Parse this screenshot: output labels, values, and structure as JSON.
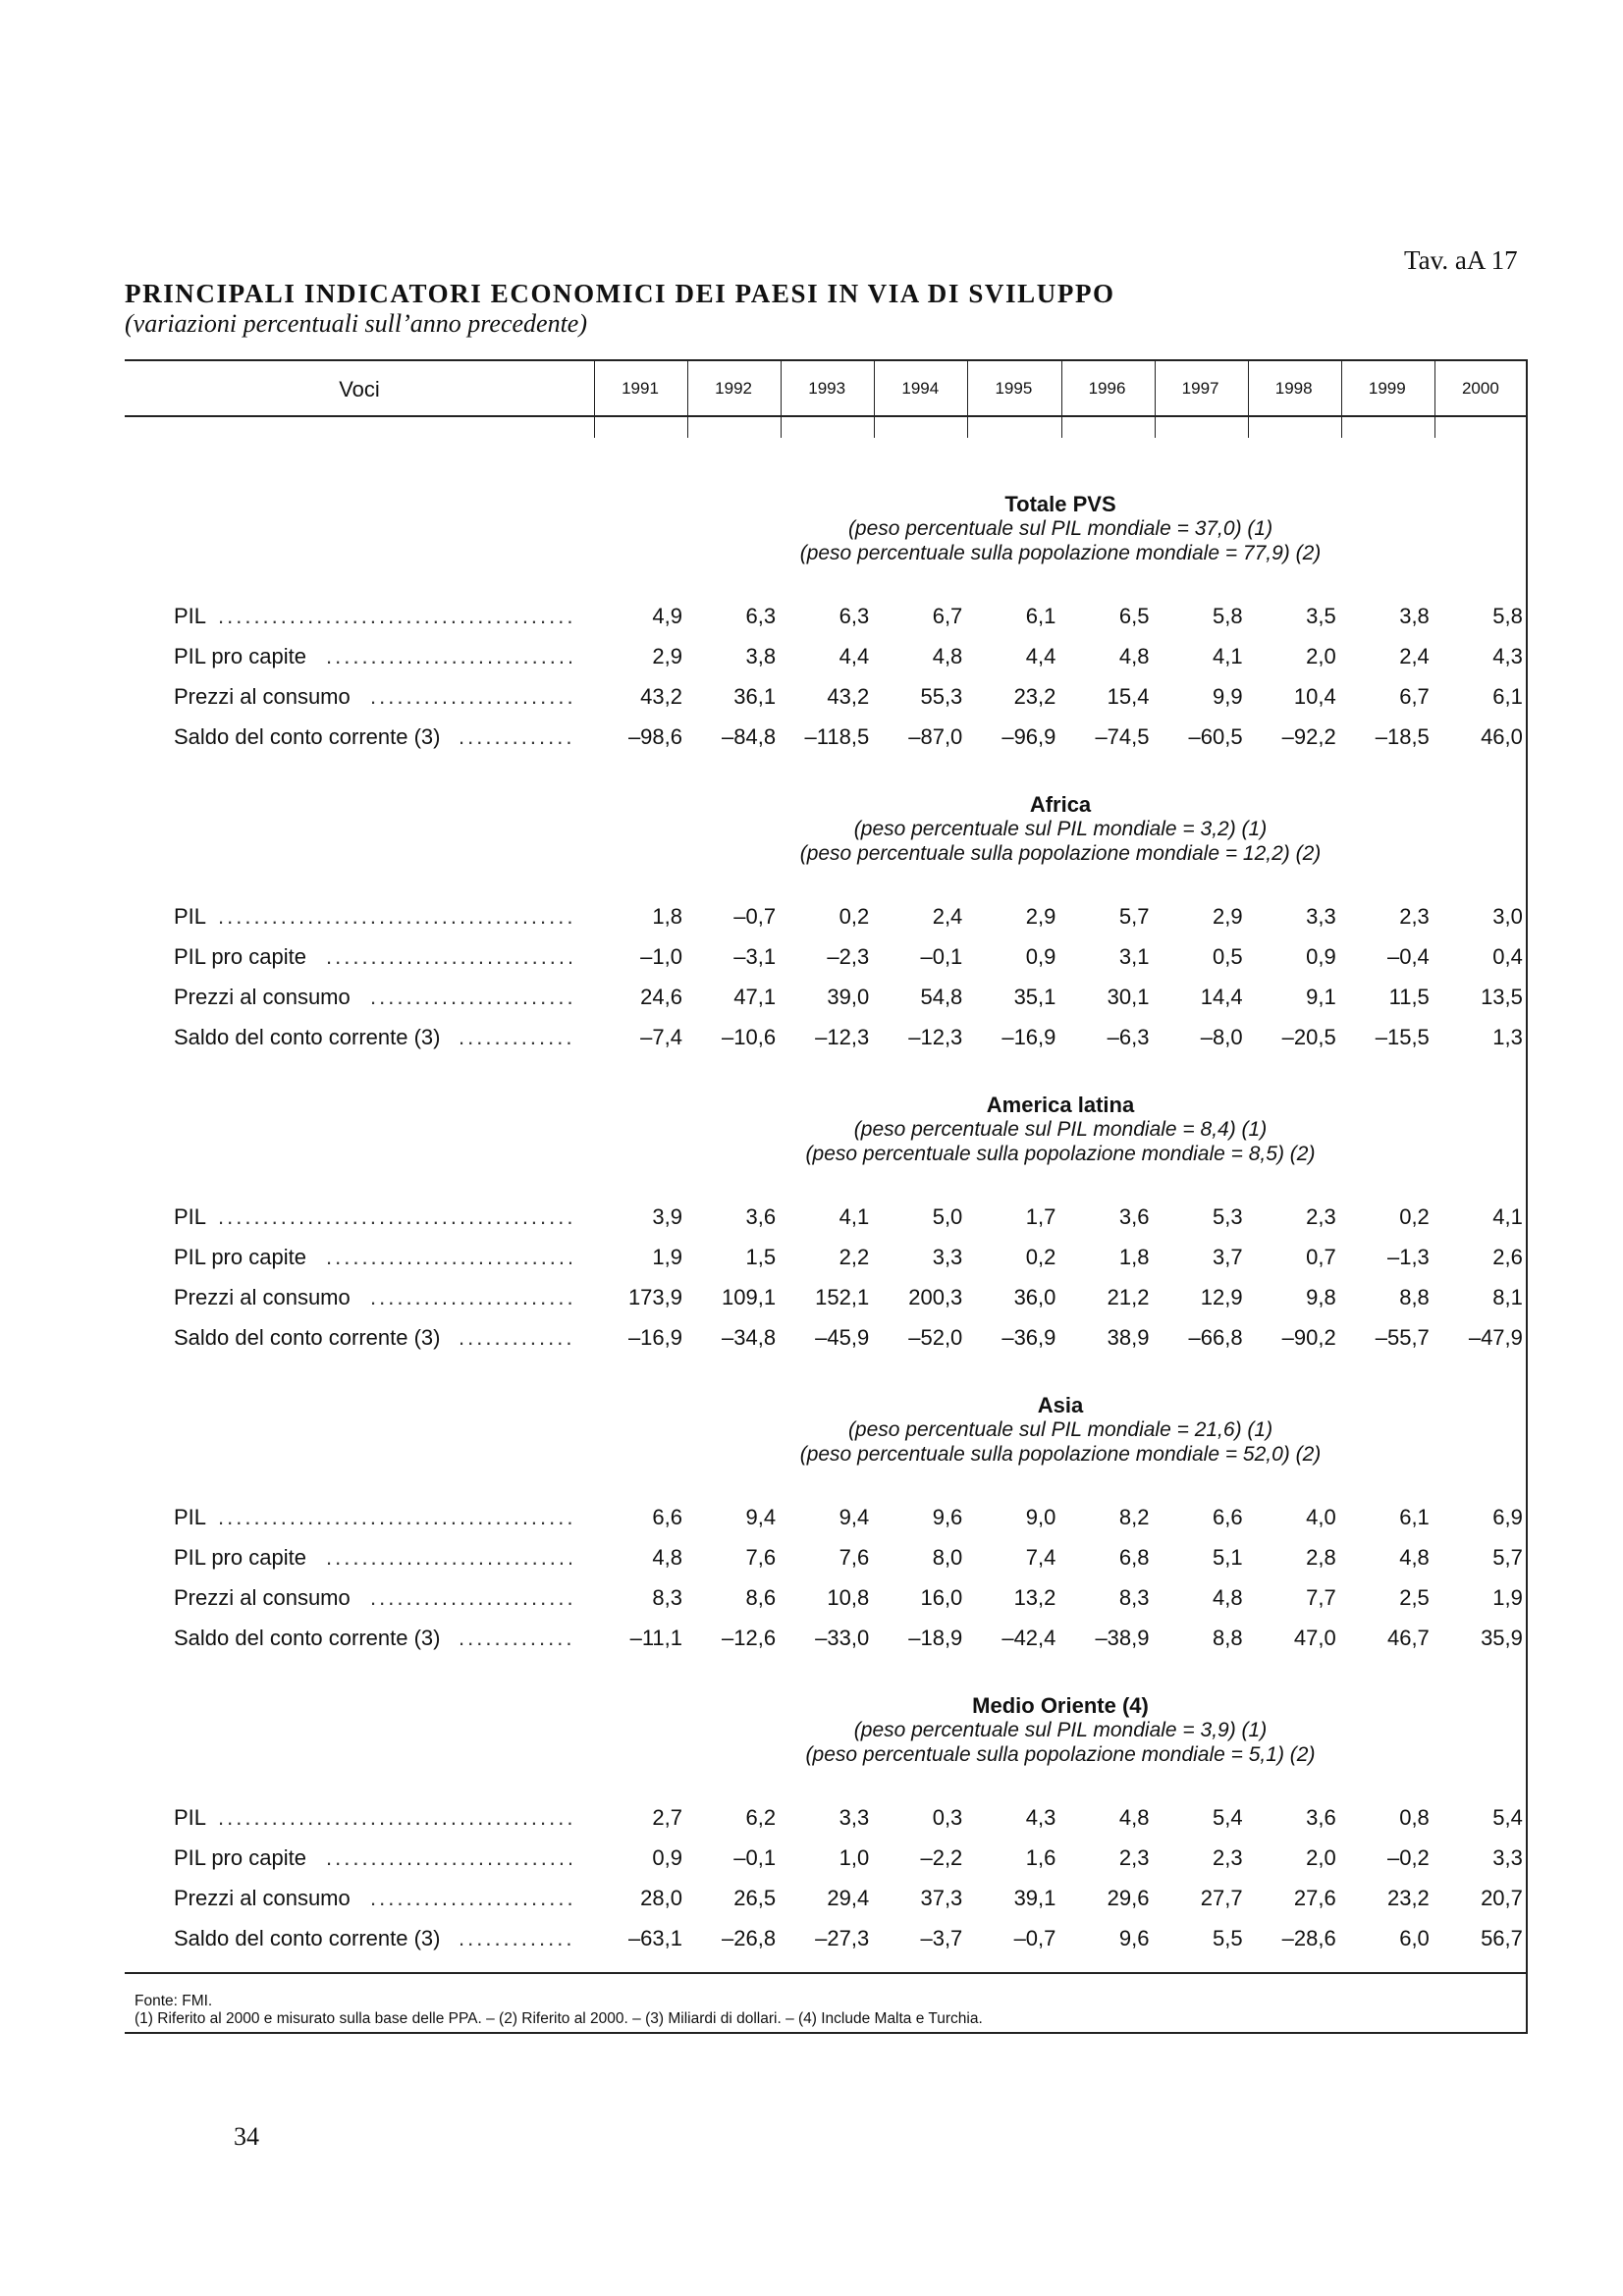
{
  "page": {
    "tav_label": "Tav. aA 17",
    "title": "PRINCIPALI  INDICATORI  ECONOMICI  DEI  PAESI  IN  VIA  DI  SVILUPPO",
    "subtitle": "(variazioni percentuali sull’anno precedente)",
    "page_number": "34"
  },
  "table": {
    "voci_label": "Voci",
    "years": [
      "1991",
      "1992",
      "1993",
      "1994",
      "1995",
      "1996",
      "1997",
      "1998",
      "1999",
      "2000"
    ],
    "sections": [
      {
        "name": "Totale PVS",
        "sub1": "(peso percentuale sul PIL mondiale = 37,0) (1)",
        "sub2": "(peso percentuale sulla popolazione mondiale = 77,9) (2)",
        "rows": [
          {
            "label": "PIL",
            "values": [
              "4,9",
              "6,3",
              "6,3",
              "6,7",
              "6,1",
              "6,5",
              "5,8",
              "3,5",
              "3,8",
              "5,8"
            ]
          },
          {
            "label": "PIL pro capite",
            "values": [
              "2,9",
              "3,8",
              "4,4",
              "4,8",
              "4,4",
              "4,8",
              "4,1",
              "2,0",
              "2,4",
              "4,3"
            ]
          },
          {
            "label": "Prezzi al consumo",
            "values": [
              "43,2",
              "36,1",
              "43,2",
              "55,3",
              "23,2",
              "15,4",
              "9,9",
              "10,4",
              "6,7",
              "6,1"
            ]
          },
          {
            "label": "Saldo del conto corrente (3)",
            "values": [
              "–98,6",
              "–84,8",
              "–118,5",
              "–87,0",
              "–96,9",
              "–74,5",
              "–60,5",
              "–92,2",
              "–18,5",
              "46,0"
            ]
          }
        ]
      },
      {
        "name": "Africa",
        "sub1": "(peso percentuale sul PIL mondiale = 3,2) (1)",
        "sub2": "(peso percentuale sulla popolazione mondiale = 12,2) (2)",
        "rows": [
          {
            "label": "PIL",
            "values": [
              "1,8",
              "–0,7",
              "0,2",
              "2,4",
              "2,9",
              "5,7",
              "2,9",
              "3,3",
              "2,3",
              "3,0"
            ]
          },
          {
            "label": "PIL pro capite",
            "values": [
              "–1,0",
              "–3,1",
              "–2,3",
              "–0,1",
              "0,9",
              "3,1",
              "0,5",
              "0,9",
              "–0,4",
              "0,4"
            ]
          },
          {
            "label": "Prezzi al consumo",
            "values": [
              "24,6",
              "47,1",
              "39,0",
              "54,8",
              "35,1",
              "30,1",
              "14,4",
              "9,1",
              "11,5",
              "13,5"
            ]
          },
          {
            "label": "Saldo del conto corrente (3)",
            "values": [
              "–7,4",
              "–10,6",
              "–12,3",
              "–12,3",
              "–16,9",
              "–6,3",
              "–8,0",
              "–20,5",
              "–15,5",
              "1,3"
            ]
          }
        ]
      },
      {
        "name": "America latina",
        "sub1": "(peso percentuale sul PIL mondiale = 8,4) (1)",
        "sub2": "(peso percentuale sulla popolazione mondiale = 8,5) (2)",
        "rows": [
          {
            "label": "PIL",
            "values": [
              "3,9",
              "3,6",
              "4,1",
              "5,0",
              "1,7",
              "3,6",
              "5,3",
              "2,3",
              "0,2",
              "4,1"
            ]
          },
          {
            "label": "PIL pro capite",
            "values": [
              "1,9",
              "1,5",
              "2,2",
              "3,3",
              "0,2",
              "1,8",
              "3,7",
              "0,7",
              "–1,3",
              "2,6"
            ]
          },
          {
            "label": "Prezzi al consumo",
            "values": [
              "173,9",
              "109,1",
              "152,1",
              "200,3",
              "36,0",
              "21,2",
              "12,9",
              "9,8",
              "8,8",
              "8,1"
            ]
          },
          {
            "label": "Saldo del conto corrente (3)",
            "values": [
              "–16,9",
              "–34,8",
              "–45,9",
              "–52,0",
              "–36,9",
              "38,9",
              "–66,8",
              "–90,2",
              "–55,7",
              "–47,9"
            ]
          }
        ]
      },
      {
        "name": "Asia",
        "sub1": "(peso percentuale sul PIL mondiale = 21,6) (1)",
        "sub2": "(peso percentuale sulla popolazione mondiale = 52,0) (2)",
        "rows": [
          {
            "label": "PIL",
            "values": [
              "6,6",
              "9,4",
              "9,4",
              "9,6",
              "9,0",
              "8,2",
              "6,6",
              "4,0",
              "6,1",
              "6,9"
            ]
          },
          {
            "label": "PIL pro capite",
            "values": [
              "4,8",
              "7,6",
              "7,6",
              "8,0",
              "7,4",
              "6,8",
              "5,1",
              "2,8",
              "4,8",
              "5,7"
            ]
          },
          {
            "label": "Prezzi al consumo",
            "values": [
              "8,3",
              "8,6",
              "10,8",
              "16,0",
              "13,2",
              "8,3",
              "4,8",
              "7,7",
              "2,5",
              "1,9"
            ]
          },
          {
            "label": "Saldo del conto corrente (3)",
            "values": [
              "–11,1",
              "–12,6",
              "–33,0",
              "–18,9",
              "–42,4",
              "–38,9",
              "8,8",
              "47,0",
              "46,7",
              "35,9"
            ]
          }
        ]
      },
      {
        "name": "Medio Oriente (4)",
        "sub1": "(peso percentuale sul PIL mondiale = 3,9) (1)",
        "sub2": "(peso percentuale sulla popolazione mondiale = 5,1) (2)",
        "rows": [
          {
            "label": "PIL",
            "values": [
              "2,7",
              "6,2",
              "3,3",
              "0,3",
              "4,3",
              "4,8",
              "5,4",
              "3,6",
              "0,8",
              "5,4"
            ]
          },
          {
            "label": "PIL pro capite",
            "values": [
              "0,9",
              "–0,1",
              "1,0",
              "–2,2",
              "1,6",
              "2,3",
              "2,3",
              "2,0",
              "–0,2",
              "3,3"
            ]
          },
          {
            "label": "Prezzi al consumo",
            "values": [
              "28,0",
              "26,5",
              "29,4",
              "37,3",
              "39,1",
              "29,6",
              "27,7",
              "27,6",
              "23,2",
              "20,7"
            ]
          },
          {
            "label": "Saldo del conto corrente (3)",
            "values": [
              "–63,1",
              "–26,8",
              "–27,3",
              "–3,7",
              "–0,7",
              "9,6",
              "5,5",
              "–28,6",
              "6,0",
              "56,7"
            ]
          }
        ]
      }
    ]
  },
  "footnotes": {
    "source": "Fonte: FMI.",
    "notes": "(1) Riferito al 2000 e misurato sulla base delle PPA. – (2) Riferito al 2000. – (3) Miliardi di dollari. – (4) Include Malta e Turchia."
  }
}
